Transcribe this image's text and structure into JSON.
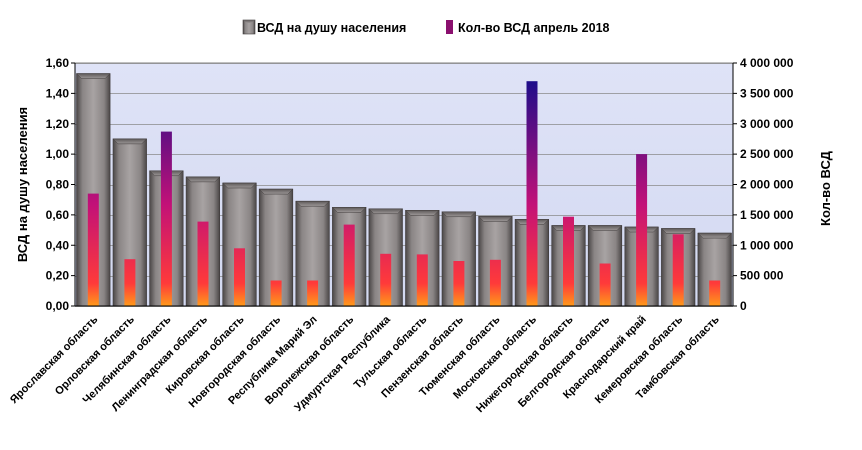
{
  "chart_data": {
    "type": "bar",
    "categories": [
      "Ярославская область",
      "Орловская область",
      "Челябинская область",
      "Ленинградская область",
      "Кировская область",
      "Новгородская область",
      "Республика Марий Эл",
      "Воронежская область",
      "Удмуртская Республика",
      "Тульская область",
      "Пензенская область",
      "Тюменская область",
      "Московская область",
      "Нижегородская область",
      "Белгородская область",
      "Краснодарский край",
      "Кемеровская область",
      "Тамбовская область"
    ],
    "series": [
      {
        "name": "ВСД на душу населения",
        "axis": "left",
        "color": "#7f7b7b",
        "values": [
          1.53,
          1.1,
          0.89,
          0.85,
          0.81,
          0.77,
          0.69,
          0.65,
          0.64,
          0.63,
          0.62,
          0.59,
          0.57,
          0.53,
          0.53,
          0.52,
          0.51,
          0.48
        ]
      },
      {
        "name": "Кол-во ВСД апрель 2018",
        "axis": "right",
        "color": "#c0117a",
        "values": [
          1850000,
          770000,
          2870000,
          1390000,
          950000,
          420000,
          420000,
          1340000,
          860000,
          850000,
          740000,
          760000,
          3700000,
          1470000,
          700000,
          2500000,
          1180000,
          420000
        ]
      }
    ],
    "ylabel": "ВСД на душу населения",
    "y2label": "Кол-во ВСД",
    "ylim": [
      0,
      1.6
    ],
    "y_ticks": [
      "0,00",
      "0,20",
      "0,40",
      "0,60",
      "0,80",
      "1,00",
      "1,20",
      "1,40",
      "1,60"
    ],
    "y2lim": [
      0,
      4000000
    ],
    "y2_ticks": [
      "0",
      "500 000",
      "1 000 000",
      "1 500 000",
      "2 000 000",
      "2 500 000",
      "3 000 000",
      "3 500 000",
      "4 000 000"
    ],
    "grid": true,
    "legend_position": "top-center",
    "plot_background": "#d9def4"
  }
}
